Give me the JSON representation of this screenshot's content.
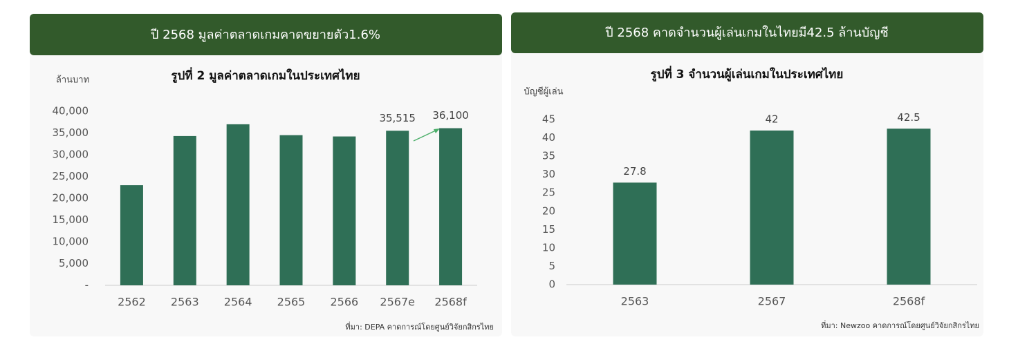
{
  "chart_data": [
    {
      "type": "bar",
      "title": "ปี 2568 มูลค่าตลาดเกมคาดขยายตัว1.6%",
      "subtitle": "รูปที่ 2 มูลค่าตลาดเกมในประเทศไทย",
      "y_label": "ล้านบาท",
      "categories": [
        "2562",
        "2563",
        "2564",
        "2565",
        "2566",
        "2567e",
        "2568f"
      ],
      "values": [
        23000,
        34300,
        37000,
        34500,
        34200,
        35515,
        36100
      ],
      "value_labels": [
        null,
        null,
        null,
        null,
        null,
        "35,515",
        "36,100"
      ],
      "color": "#2f6f56",
      "ylim": [
        0,
        40000
      ],
      "yticks": [
        {
          "value": 0,
          "label": "-"
        },
        {
          "value": 5000,
          "label": "5,000"
        },
        {
          "value": 10000,
          "label": "10,000"
        },
        {
          "value": 15000,
          "label": "15,000"
        },
        {
          "value": 20000,
          "label": "20,000"
        },
        {
          "value": 25000,
          "label": "25,000"
        },
        {
          "value": 30000,
          "label": "30,000"
        },
        {
          "value": 35000,
          "label": "35,000"
        },
        {
          "value": 40000,
          "label": "40,000"
        }
      ],
      "grid": false,
      "source": "ที่มา: DEPA  คาดการณ์โดยศูนย์วิจัยกสิกรไทย"
    },
    {
      "type": "bar",
      "title": "ปี 2568 คาดจำนวนผู้เล่นเกมในไทยมี42.5 ล้านบัญชี",
      "subtitle": "รูปที่ 3 จำนวนผู้เล่นเกมในประเทศไทย",
      "y_label": "บัญชีผู้เล่น",
      "categories": [
        "2563",
        "2567",
        "2568f"
      ],
      "values": [
        27.8,
        42,
        42.5
      ],
      "color": "#2f6f56",
      "ylim": [
        0,
        45
      ],
      "yticks": [
        0,
        5,
        10,
        15,
        20,
        25,
        30,
        35,
        40,
        45
      ],
      "grid": false,
      "source": "ที่มา: Newzoo  คาดการณ์โดยศูนย์วิจัยกสิกรไทย"
    }
  ]
}
